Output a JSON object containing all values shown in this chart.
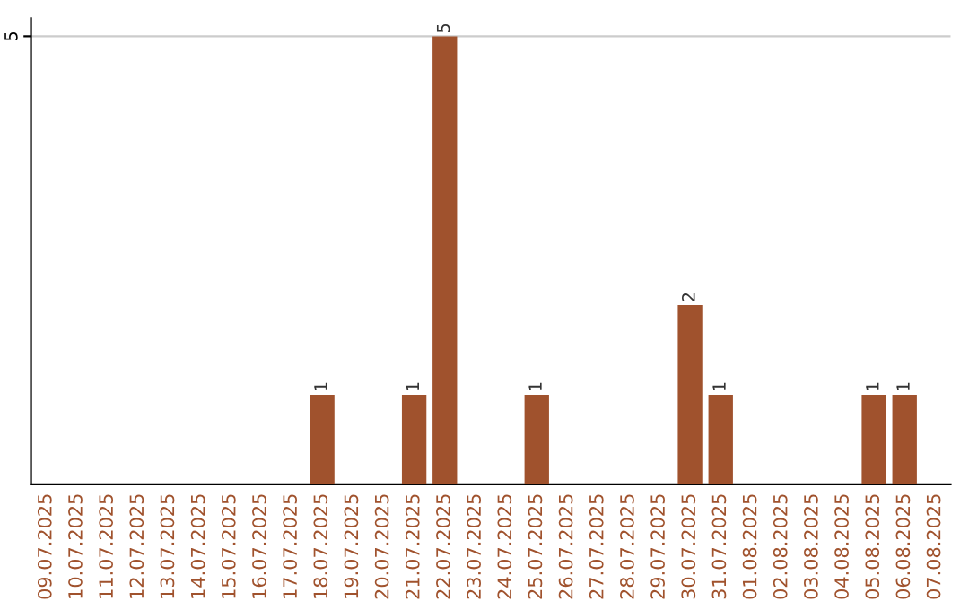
{
  "chart_data": {
    "type": "bar",
    "categories": [
      "09.07.2025",
      "10.07.2025",
      "11.07.2025",
      "12.07.2025",
      "13.07.2025",
      "14.07.2025",
      "15.07.2025",
      "16.07.2025",
      "17.07.2025",
      "18.07.2025",
      "19.07.2025",
      "20.07.2025",
      "21.07.2025",
      "22.07.2025",
      "23.07.2025",
      "24.07.2025",
      "25.07.2025",
      "26.07.2025",
      "27.07.2025",
      "28.07.2025",
      "29.07.2025",
      "30.07.2025",
      "31.07.2025",
      "01.08.2025",
      "02.08.2025",
      "03.08.2025",
      "04.08.2025",
      "05.08.2025",
      "06.08.2025",
      "07.08.2025"
    ],
    "values": [
      0,
      0,
      0,
      0,
      0,
      0,
      0,
      0,
      0,
      1,
      0,
      0,
      1,
      5,
      0,
      0,
      1,
      0,
      0,
      0,
      0,
      2,
      1,
      0,
      0,
      0,
      0,
      1,
      1,
      0
    ],
    "value_labels": [
      null,
      null,
      null,
      null,
      null,
      null,
      null,
      null,
      null,
      "1",
      null,
      null,
      "1",
      "5",
      null,
      null,
      "1",
      null,
      null,
      null,
      null,
      "2",
      "1",
      null,
      null,
      null,
      null,
      "1",
      "1",
      null
    ],
    "color": "#a0522d",
    "ylim": [
      0,
      5.2
    ],
    "yticks": [
      5
    ],
    "grid": "y"
  }
}
